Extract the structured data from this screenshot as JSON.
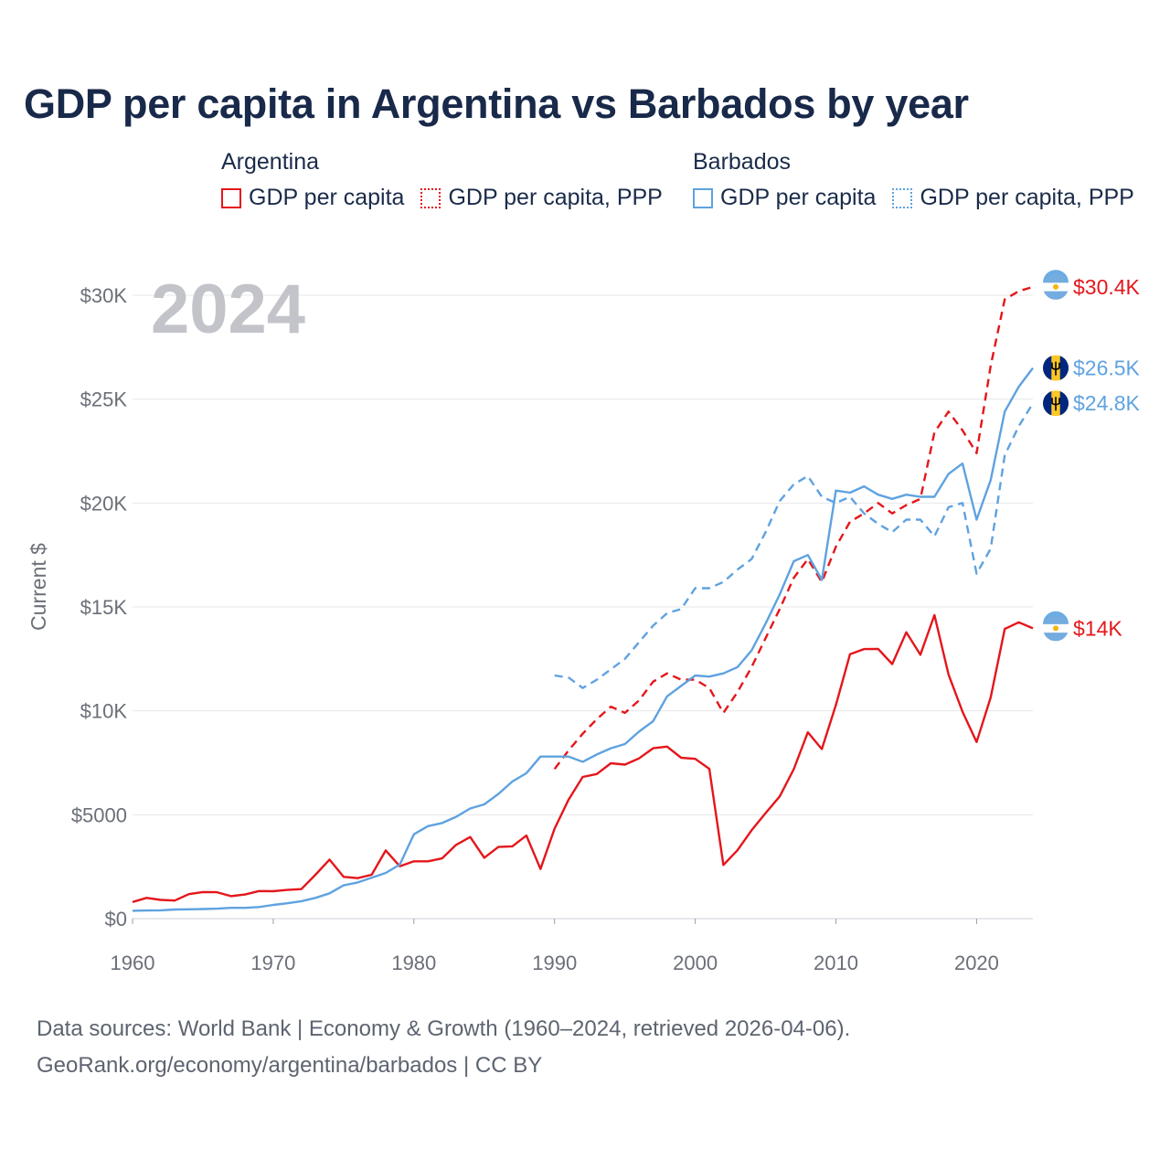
{
  "chart_data": {
    "type": "line",
    "title": "GDP per capita in Argentina vs Barbados by year",
    "ylabel": "Current $",
    "xlabel": "",
    "xlim": [
      1960,
      2024
    ],
    "ylim": [
      0,
      30000
    ],
    "x_ticks": [
      1960,
      1970,
      1980,
      1990,
      2000,
      2010,
      2020
    ],
    "y_ticks": [
      {
        "value": 0,
        "label": "$0"
      },
      {
        "value": 5000,
        "label": "$5000"
      },
      {
        "value": 10000,
        "label": "$10K"
      },
      {
        "value": 15000,
        "label": "$15K"
      },
      {
        "value": 20000,
        "label": "$20K"
      },
      {
        "value": 25000,
        "label": "$25K"
      },
      {
        "value": 30000,
        "label": "$30K"
      }
    ],
    "year_display": "2024",
    "grid": true,
    "legend_groups": [
      {
        "name": "Argentina",
        "items": [
          "GDP per capita",
          "GDP per capita, PPP"
        ]
      },
      {
        "name": "Barbados",
        "items": [
          "GDP per capita",
          "GDP per capita, PPP"
        ]
      }
    ],
    "series": [
      {
        "name": "Argentina GDP per capita",
        "country": "Argentina",
        "color": "#e4161b",
        "dash": false,
        "end_label": "$14K",
        "start_year": 1960,
        "values": [
          800,
          1000,
          900,
          870,
          1180,
          1280,
          1270,
          1080,
          1160,
          1330,
          1320,
          1380,
          1420,
          2110,
          2840,
          2010,
          1950,
          2110,
          3280,
          2520,
          2760,
          2760,
          2900,
          3550,
          3930,
          2930,
          3450,
          3480,
          4000,
          2390,
          4330,
          5730,
          6820,
          6960,
          7480,
          7410,
          7710,
          8200,
          8280,
          7740,
          7690,
          7210,
          2580,
          3290,
          4250,
          5080,
          5880,
          7190,
          8970,
          8160,
          10280,
          12720,
          12970,
          12980,
          12250,
          13780,
          12700,
          14610,
          11750,
          9960,
          8500,
          10640,
          13940,
          14260,
          13970
        ]
      },
      {
        "name": "Argentina GDP per capita, PPP",
        "country": "Argentina",
        "color": "#e4161b",
        "dash": true,
        "end_label": "$30.4K",
        "start_year": 1990,
        "values": [
          7200,
          8100,
          8900,
          9600,
          10200,
          9900,
          10500,
          11400,
          11800,
          11500,
          11500,
          11100,
          9900,
          10900,
          12100,
          13500,
          14900,
          16400,
          17300,
          16200,
          17900,
          19100,
          19500,
          20000,
          19500,
          19900,
          20200,
          23400,
          24400,
          23500,
          22400,
          26600,
          29800,
          30200,
          30400
        ]
      },
      {
        "name": "Barbados GDP per capita",
        "country": "Barbados",
        "color": "#5fa2e0",
        "dash": false,
        "end_label": "$26.5K",
        "start_year": 1960,
        "values": [
          380,
          390,
          400,
          440,
          450,
          460,
          480,
          520,
          520,
          560,
          660,
          740,
          840,
          1000,
          1220,
          1600,
          1740,
          1970,
          2200,
          2600,
          4060,
          4450,
          4600,
          4900,
          5300,
          5500,
          6000,
          6600,
          7000,
          7800,
          7800,
          7800,
          7550,
          7900,
          8200,
          8400,
          9000,
          9500,
          10700,
          11200,
          11700,
          11650,
          11800,
          12100,
          12900,
          14200,
          15600,
          17200,
          17500,
          16300,
          20600,
          20500,
          20800,
          20400,
          20200,
          20400,
          20300,
          20300,
          21400,
          21900,
          19200,
          21100,
          24400,
          25600,
          26500
        ]
      },
      {
        "name": "Barbados GDP per capita, PPP",
        "country": "Barbados",
        "color": "#5fa2e0",
        "dash": true,
        "end_label": "$24.8K",
        "start_year": 1990,
        "values": [
          11700,
          11600,
          11100,
          11500,
          12000,
          12500,
          13300,
          14100,
          14700,
          14900,
          15900,
          15900,
          16200,
          16800,
          17300,
          18600,
          20100,
          20900,
          21300,
          20300,
          20000,
          20300,
          19500,
          19000,
          18600,
          19200,
          19200,
          18400,
          19800,
          20000,
          16600,
          17800,
          22300,
          23700,
          24800
        ]
      }
    ]
  },
  "legend": {
    "argentina": {
      "name": "Argentina",
      "solid": "GDP per capita",
      "dashed": "GDP per capita, PPP"
    },
    "barbados": {
      "name": "Barbados",
      "solid": "GDP per capita",
      "dashed": "GDP per capita, PPP"
    }
  },
  "flags": {
    "argentina": "argentina-flag-icon",
    "barbados": "barbados-flag-icon"
  },
  "footer": {
    "line1": "Data sources: World Bank | Economy & Growth (1960–2024, retrieved 2026-04-06).",
    "line2": "GeoRank.org/economy/argentina/barbados | CC BY"
  }
}
